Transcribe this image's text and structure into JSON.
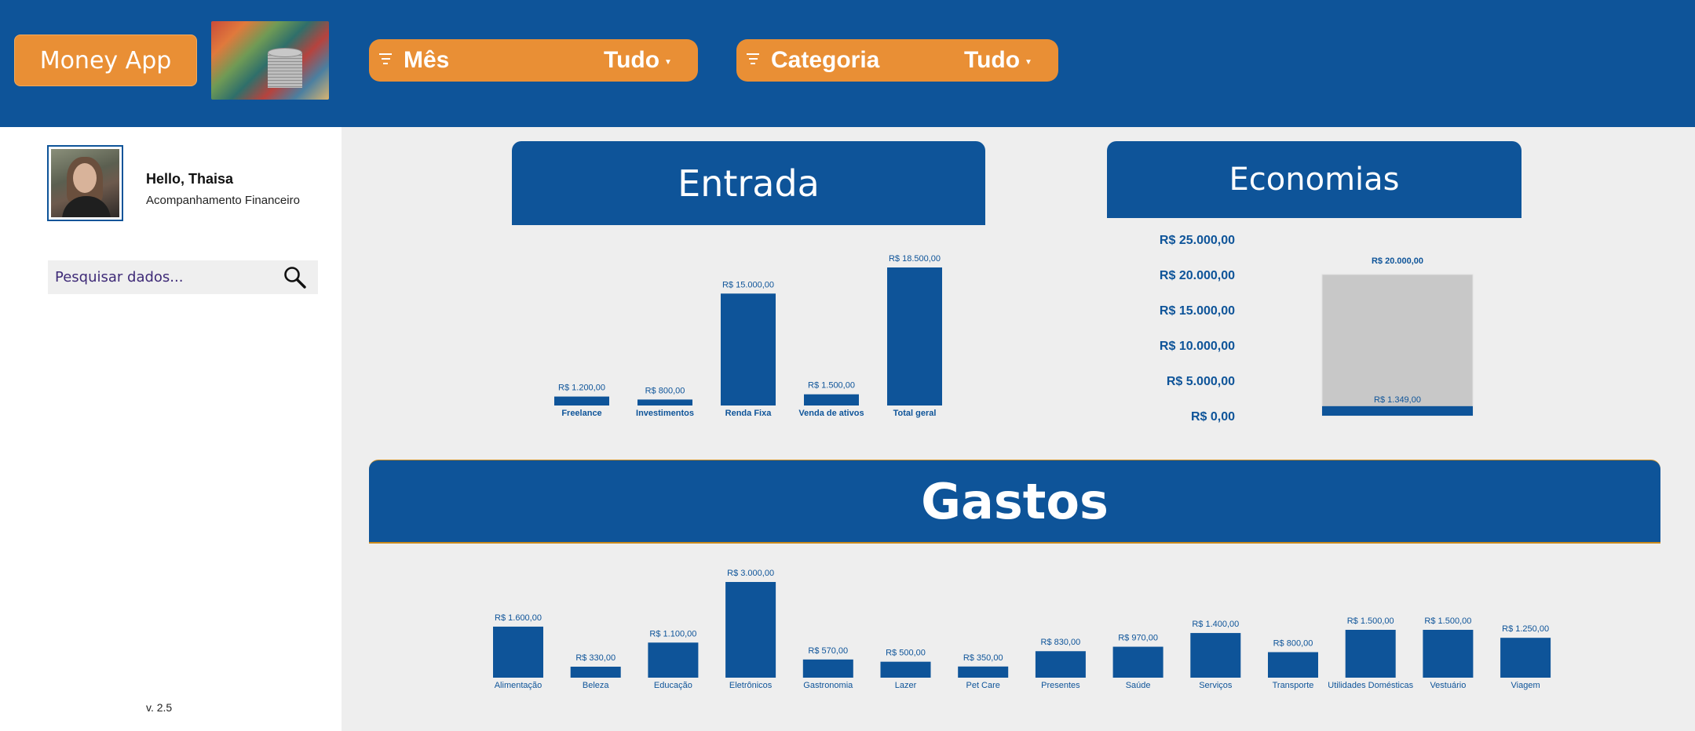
{
  "header": {
    "app_name": "Money App",
    "filters": [
      {
        "label": "Mês",
        "value": "Tudo"
      },
      {
        "label": "Categoria",
        "value": "Tudo"
      }
    ]
  },
  "sidebar": {
    "greeting": "Hello, Thaisa",
    "subtitle": "Acompanhamento Financeiro",
    "search_placeholder": "Pesquisar dados...",
    "version": "v. 2.5"
  },
  "colors": {
    "primary": "#0e5499",
    "accent": "#e98f35",
    "background": "#eeeeee",
    "target_bar": "#c8c8c8"
  },
  "icons": [
    "filter-icon",
    "search-icon",
    "caret-down-icon"
  ],
  "panels": {
    "entrada_title": "Entrada",
    "economias_title": "Economias",
    "gastos_title": "Gastos"
  },
  "chart_data": [
    {
      "type": "bar",
      "title": "Entrada",
      "categories": [
        "Freelance",
        "Investimentos",
        "Renda Fixa",
        "Venda de ativos",
        "Total geral"
      ],
      "values": [
        1200,
        800,
        15000,
        1500,
        18500
      ],
      "data_labels": [
        "R$ 1.200,00",
        "R$ 800,00",
        "R$ 15.000,00",
        "R$ 1.500,00",
        "R$ 18.500,00"
      ],
      "ylim": [
        0,
        18500
      ]
    },
    {
      "type": "bar",
      "title": "Economias",
      "series": [
        {
          "values": [
            20000
          ],
          "label": "R$ 20.000,00"
        },
        {
          "values": [
            1349
          ],
          "label": "R$ 1.349,00"
        }
      ],
      "yticks": [
        "R$ 25.000,00",
        "R$ 20.000,00",
        "R$ 15.000,00",
        "R$ 10.000,00",
        "R$ 5.000,00",
        "R$ 0,00"
      ],
      "ylim": [
        0,
        25000
      ]
    },
    {
      "type": "bar",
      "title": "Gastos",
      "categories": [
        "Alimentação",
        "Beleza",
        "Educação",
        "Eletrônicos",
        "Gastronomia",
        "Lazer",
        "Pet Care",
        "Presentes",
        "Saúde",
        "Serviços",
        "Transporte",
        "Utilidades Domésticas",
        "Vestuário",
        "Viagem"
      ],
      "values": [
        1600,
        330,
        1100,
        3000,
        570,
        500,
        350,
        830,
        970,
        1400,
        800,
        1500,
        1500,
        1250
      ],
      "data_labels": [
        "R$ 1.600,00",
        "R$ 330,00",
        "R$ 1.100,00",
        "R$ 3.000,00",
        "R$ 570,00",
        "R$ 500,00",
        "R$ 350,00",
        "R$ 830,00",
        "R$ 970,00",
        "R$ 1.400,00",
        "R$ 800,00",
        "R$ 1.500,00",
        "R$ 1.500,00",
        "R$ 1.250,00"
      ],
      "ylim": [
        0,
        3000
      ]
    }
  ]
}
